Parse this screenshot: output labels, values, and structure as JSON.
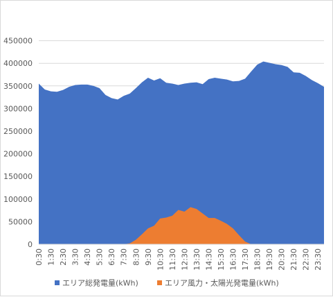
{
  "chart_data": {
    "type": "area",
    "title": "",
    "xlabel": "",
    "ylabel": "",
    "ylim": [
      0,
      500000
    ],
    "yticks": [
      0,
      50000,
      100000,
      150000,
      200000,
      250000,
      300000,
      350000,
      400000,
      450000
    ],
    "grid": true,
    "legend_position": "bottom",
    "x": [
      "0:30",
      "1:00",
      "1:30",
      "2:00",
      "2:30",
      "3:00",
      "3:30",
      "4:00",
      "4:30",
      "5:00",
      "5:30",
      "6:00",
      "6:30",
      "7:00",
      "7:30",
      "8:00",
      "8:30",
      "9:00",
      "9:30",
      "10:00",
      "10:30",
      "11:00",
      "11:30",
      "12:00",
      "12:30",
      "13:00",
      "13:30",
      "14:00",
      "14:30",
      "15:00",
      "15:30",
      "16:00",
      "16:30",
      "17:00",
      "17:30",
      "18:00",
      "18:30",
      "19:00",
      "19:30",
      "20:00",
      "20:30",
      "21:00",
      "21:30",
      "22:00",
      "22:30",
      "23:00",
      "23:30",
      "24:00"
    ],
    "xtick_labels": [
      "0:30",
      "1:30",
      "2:30",
      "3:30",
      "4:30",
      "5:30",
      "6:30",
      "7:30",
      "8:30",
      "9:30",
      "10:30",
      "11:30",
      "12:30",
      "13:30",
      "14:30",
      "15:30",
      "16:30",
      "17:30",
      "18:30",
      "19:30",
      "20:30",
      "21:30",
      "22:30",
      "23:30"
    ],
    "series": [
      {
        "name": "エリア総発電量(kWh)",
        "color": "#4472c4",
        "values": [
          355000,
          342000,
          338000,
          337000,
          341000,
          348000,
          352000,
          353000,
          353000,
          350000,
          345000,
          330000,
          323000,
          320000,
          328000,
          333000,
          345000,
          358000,
          368000,
          362000,
          367000,
          357000,
          355000,
          352000,
          355000,
          357000,
          358000,
          354000,
          365000,
          368000,
          366000,
          364000,
          360000,
          361000,
          366000,
          382000,
          397000,
          404000,
          401000,
          398000,
          396000,
          392000,
          380000,
          379000,
          372000,
          363000,
          356000,
          348000
        ]
      },
      {
        "name": "エリア風力・太陽光発電量(kWh)",
        "color": "#ed7d31",
        "values": [
          0,
          0,
          0,
          0,
          0,
          0,
          0,
          0,
          0,
          0,
          0,
          0,
          0,
          0,
          0,
          2000,
          10000,
          22000,
          35000,
          41000,
          57000,
          59000,
          63000,
          76000,
          72000,
          82000,
          78000,
          68000,
          58000,
          58000,
          52000,
          45000,
          35000,
          20000,
          6000,
          0,
          0,
          0,
          0,
          0,
          0,
          0,
          0,
          0,
          0,
          0,
          0,
          0
        ]
      }
    ]
  }
}
